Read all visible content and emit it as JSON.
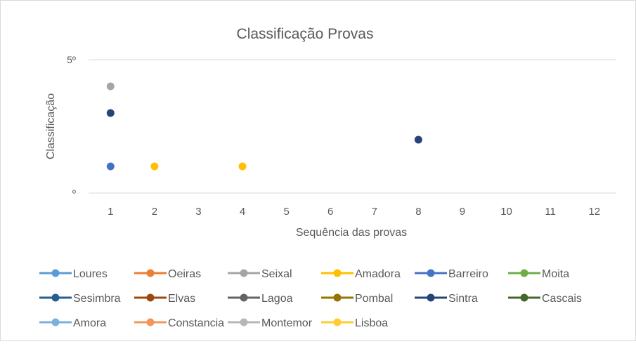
{
  "chart_data": {
    "type": "scatter",
    "title": "Classificação Provas",
    "xlabel": "Sequência das provas",
    "ylabel": "Classificação",
    "x_ticks": [
      "1",
      "2",
      "3",
      "4",
      "5",
      "6",
      "7",
      "8",
      "9",
      "10",
      "11",
      "12"
    ],
    "y_tick_labels": [
      {
        "value": 5,
        "label": "5º"
      },
      {
        "value": 0,
        "label": "º"
      }
    ],
    "xlim": [
      0.5,
      12.5
    ],
    "ylim": [
      0,
      5
    ],
    "grid": "horizontal",
    "legend_position": "bottom",
    "series": [
      {
        "name": "Loures",
        "color": "#5b9bd5",
        "points": []
      },
      {
        "name": "Oeiras",
        "color": "#ed7d31",
        "points": []
      },
      {
        "name": "Seixal",
        "color": "#a5a5a5",
        "points": [
          {
            "x": 1,
            "y": 4
          }
        ]
      },
      {
        "name": "Amadora",
        "color": "#ffc000",
        "points": [
          {
            "x": 2,
            "y": 1
          },
          {
            "x": 4,
            "y": 1
          }
        ]
      },
      {
        "name": "Barreiro",
        "color": "#4472c4",
        "points": [
          {
            "x": 1,
            "y": 1
          }
        ]
      },
      {
        "name": "Moita",
        "color": "#70ad47",
        "points": []
      },
      {
        "name": "Sesimbra",
        "color": "#255e91",
        "points": []
      },
      {
        "name": "Elvas",
        "color": "#9e480e",
        "points": []
      },
      {
        "name": "Lagoa",
        "color": "#636363",
        "points": []
      },
      {
        "name": "Pombal",
        "color": "#997300",
        "points": []
      },
      {
        "name": "Sintra",
        "color": "#264478",
        "points": [
          {
            "x": 1,
            "y": 3
          },
          {
            "x": 8,
            "y": 2
          }
        ]
      },
      {
        "name": "Cascais",
        "color": "#43682b",
        "points": []
      },
      {
        "name": "Amora",
        "color": "#7cafdd",
        "points": []
      },
      {
        "name": "Constancia",
        "color": "#f1975a",
        "points": []
      },
      {
        "name": "Montemor",
        "color": "#b7b7b7",
        "points": []
      },
      {
        "name": "Lisboa",
        "color": "#ffcd33",
        "points": []
      }
    ]
  }
}
